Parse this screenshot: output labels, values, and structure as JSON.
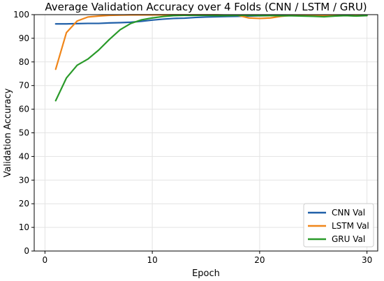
{
  "chart_data": {
    "type": "line",
    "title": "Average Validation Accuracy over 4 Folds (CNN / LSTM / GRU)",
    "xlabel": "Epoch",
    "ylabel": "Validation Accuracy",
    "xlim": [
      -1,
      31
    ],
    "ylim": [
      0,
      100
    ],
    "xticks": [
      0,
      10,
      20,
      30
    ],
    "yticks": [
      0,
      10,
      20,
      30,
      40,
      50,
      60,
      70,
      80,
      90,
      100
    ],
    "grid": true,
    "legend_position": "bottom-right",
    "x": [
      1,
      2,
      3,
      4,
      5,
      6,
      7,
      8,
      9,
      10,
      11,
      12,
      13,
      14,
      15,
      16,
      17,
      18,
      19,
      20,
      21,
      22,
      23,
      24,
      25,
      26,
      27,
      28,
      29,
      30
    ],
    "series": [
      {
        "name": "CNN Val",
        "color": "#1f5fa8",
        "values": [
          96.1,
          96.1,
          96.2,
          96.3,
          96.3,
          96.5,
          96.6,
          96.8,
          97.2,
          97.7,
          98.1,
          98.4,
          98.5,
          98.8,
          99.0,
          99.1,
          99.2,
          99.3,
          99.4,
          99.5,
          99.6,
          99.6,
          99.6,
          99.7,
          99.7,
          99.7,
          99.8,
          99.8,
          99.8,
          99.8
        ]
      },
      {
        "name": "LSTM Val",
        "color": "#f0861a",
        "values": [
          76.9,
          92.4,
          97.3,
          99.0,
          99.4,
          99.7,
          99.8,
          99.9,
          99.9,
          99.9,
          99.9,
          99.9,
          99.9,
          99.9,
          99.9,
          99.9,
          99.8,
          99.7,
          98.6,
          98.4,
          98.6,
          99.3,
          99.7,
          99.8,
          99.7,
          99.5,
          99.6,
          99.7,
          99.7,
          99.6
        ]
      },
      {
        "name": "GRU Val",
        "color": "#2a9a2a",
        "values": [
          63.6,
          73.2,
          78.6,
          81.2,
          85.0,
          89.5,
          93.6,
          96.3,
          97.8,
          98.6,
          99.2,
          99.6,
          99.7,
          99.7,
          99.7,
          99.6,
          99.6,
          99.7,
          99.7,
          99.6,
          99.6,
          99.5,
          99.5,
          99.4,
          99.3,
          99.1,
          99.4,
          99.6,
          99.4,
          99.6
        ]
      }
    ]
  }
}
